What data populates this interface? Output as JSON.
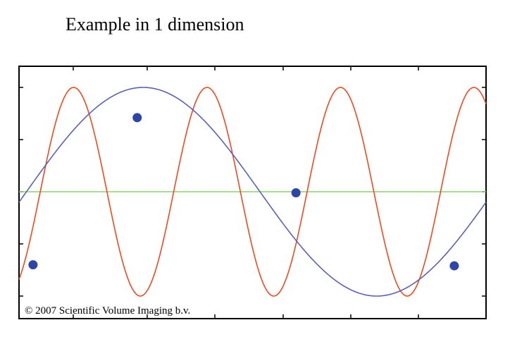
{
  "title": "Example in 1 dimension",
  "copyright": "© 2007 Scientific Volume Imaging b.v.",
  "colors": {
    "signal": "#f04a1e",
    "sample_fit": "#5a60b8",
    "baseline": "#8ed36a",
    "samples": "#2d45a8",
    "frame": "#000000"
  },
  "chart_data": {
    "type": "line",
    "title": "Example in 1 dimension",
    "xlabel": "",
    "ylabel": "",
    "xlim": [
      0,
      1
    ],
    "ylim": [
      -1,
      1
    ],
    "grid": false,
    "series": [
      {
        "style": "red-line",
        "function": "sin",
        "cycles": 3.5,
        "phase": -1.0
      },
      {
        "style": "blue-line",
        "function": "sin",
        "cycles": 1.0,
        "phase": -0.1
      },
      {
        "style": "green-line",
        "function": "constant",
        "value": 0
      }
    ],
    "samples": [
      {
        "x": 0.03,
        "y": -0.7
      },
      {
        "x": 0.253,
        "y": 0.71
      },
      {
        "x": 0.593,
        "y": -0.01
      },
      {
        "x": 0.932,
        "y": -0.71
      }
    ]
  }
}
